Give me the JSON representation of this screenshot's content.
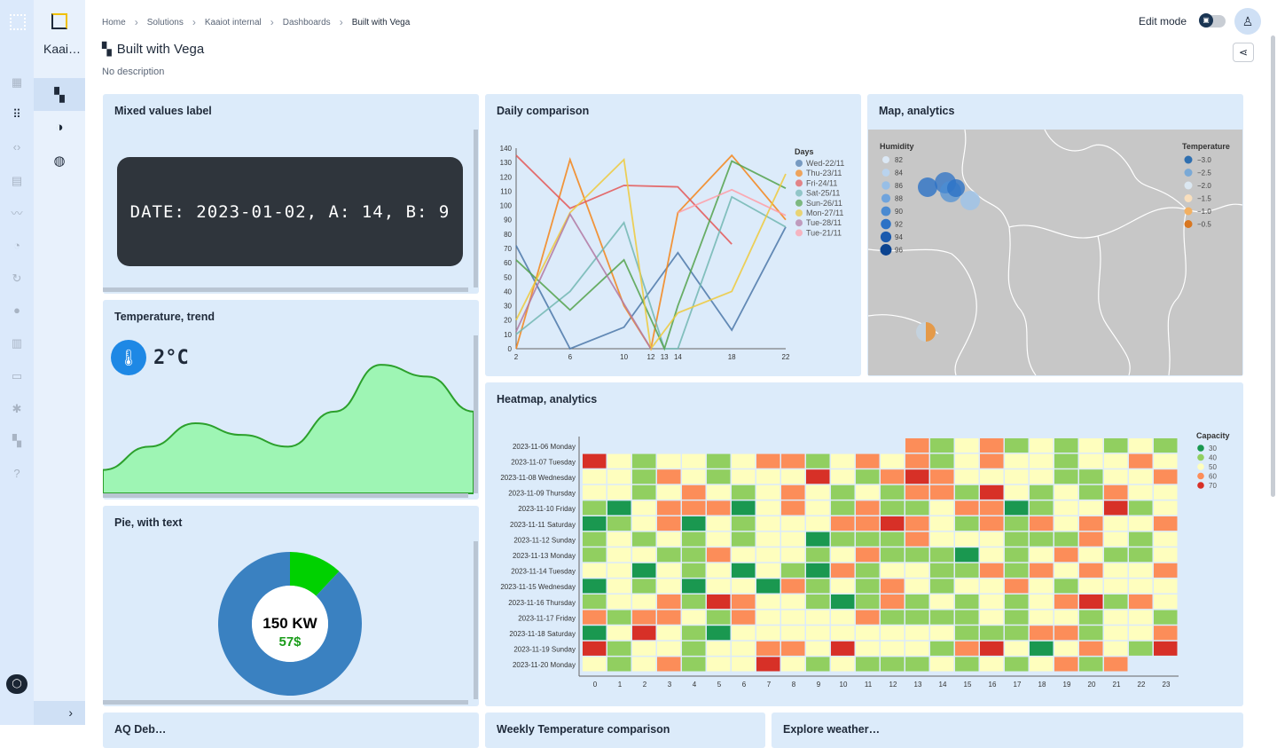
{
  "org": {
    "name": "Kaai…"
  },
  "breadcrumb": [
    "Home",
    "Solutions",
    "Kaaiot internal",
    "Dashboards",
    "Built with Vega"
  ],
  "page": {
    "title": "Built with Vega",
    "description": "No description",
    "edit_mode": "Edit mode"
  },
  "icons": {
    "rail": [
      "logo-icon",
      "dashboard-icon",
      "apps-icon",
      "code-icon",
      "device-icon",
      "analytics-icon",
      "bell-icon",
      "sync-icon",
      "user-icon",
      "building-icon",
      "folder-icon",
      "gear-icon",
      "grid-icon",
      "help-icon"
    ],
    "nav": [
      "dashboard-icon",
      "contrast-icon",
      "globe-icon"
    ]
  },
  "widgets": {
    "mixed": {
      "title": "Mixed values label",
      "text": "DATE: 2023-01-02, A: 14, B: 9"
    },
    "temp": {
      "title": "Temperature, trend",
      "value": "2°C"
    },
    "pie": {
      "title": "Pie, with text",
      "line1": "150 KW",
      "line2": "57$"
    },
    "daily": {
      "title": "Daily comparison"
    },
    "map": {
      "title": "Map, analytics"
    },
    "heatmap": {
      "title": "Heatmap, analytics"
    },
    "bottom": [
      "AQ Deb…",
      "Weekly Temperature comparison",
      "Explore weather…"
    ]
  },
  "chart_data": [
    {
      "type": "line",
      "title": "Daily comparison",
      "x": [
        2,
        6,
        10,
        12,
        13,
        14,
        18,
        22
      ],
      "ylim": [
        0,
        140
      ],
      "legend_title": "Days",
      "series": [
        {
          "name": "Wed-22/11",
          "color": "#4c78a8",
          "points": [
            [
              2,
              72
            ],
            [
              6,
              0
            ],
            [
              10,
              15
            ],
            [
              14,
              67
            ],
            [
              18,
              13
            ],
            [
              22,
              85
            ]
          ]
        },
        {
          "name": "Thu-23/11",
          "color": "#f58518",
          "points": [
            [
              2,
              0
            ],
            [
              6,
              132
            ],
            [
              10,
              30
            ],
            [
              12,
              0
            ],
            [
              14,
              95
            ],
            [
              18,
              135
            ],
            [
              22,
              90
            ]
          ]
        },
        {
          "name": "Fri-24/11",
          "color": "#e45756",
          "points": [
            [
              2,
              135
            ],
            [
              6,
              98
            ],
            [
              10,
              114
            ],
            [
              14,
              113
            ],
            [
              18,
              73
            ]
          ]
        },
        {
          "name": "Sat-25/11",
          "color": "#72b7b2",
          "points": [
            [
              2,
              10
            ],
            [
              6,
              40
            ],
            [
              10,
              88
            ],
            [
              13,
              0
            ],
            [
              14,
              0
            ],
            [
              18,
              106
            ],
            [
              22,
              85
            ]
          ]
        },
        {
          "name": "Sun-26/11",
          "color": "#54a24b",
          "points": [
            [
              2,
              62
            ],
            [
              6,
              27
            ],
            [
              10,
              62
            ],
            [
              13,
              0
            ],
            [
              14,
              30
            ],
            [
              18,
              131
            ],
            [
              22,
              112
            ]
          ]
        },
        {
          "name": "Mon-27/11",
          "color": "#eeca3b",
          "points": [
            [
              2,
              20
            ],
            [
              6,
              95
            ],
            [
              10,
              132
            ],
            [
              12,
              0
            ],
            [
              14,
              25
            ],
            [
              18,
              40
            ],
            [
              22,
              122
            ]
          ]
        },
        {
          "name": "Tue-28/11",
          "color": "#b279a2",
          "points": [
            [
              2,
              12
            ],
            [
              6,
              94
            ],
            [
              12,
              0
            ]
          ]
        },
        {
          "name": "Tue-21/11",
          "color": "#ff9da6",
          "points": [
            [
              14,
              95
            ],
            [
              18,
              111
            ],
            [
              22,
              93
            ]
          ]
        }
      ]
    },
    {
      "type": "area",
      "title": "Temperature, trend",
      "values": [
        2,
        4,
        6,
        5,
        4,
        7,
        11,
        10,
        7
      ]
    },
    {
      "type": "pie",
      "title": "Pie, with text",
      "values": [
        88,
        12
      ],
      "colors": [
        "#3a81c1",
        "#00d100"
      ]
    },
    {
      "type": "heatmap",
      "title": "Heatmap, analytics",
      "x": [
        "0",
        "1",
        "2",
        "3",
        "4",
        "5",
        "6",
        "7",
        "8",
        "9",
        "10",
        "11",
        "12",
        "13",
        "14",
        "15",
        "16",
        "17",
        "18",
        "19",
        "20",
        "21",
        "22",
        "23"
      ],
      "y": [
        "2023-11-06 Monday",
        "2023-11-07 Tuesday",
        "2023-11-08 Wednesday",
        "2023-11-09 Thursday",
        "2023-11-10 Friday",
        "2023-11-11 Saturday",
        "2023-11-12 Sunday",
        "2023-11-13 Monday",
        "2023-11-14 Tuesday",
        "2023-11-15 Wednesday",
        "2023-11-16 Thursday",
        "2023-11-17 Friday",
        "2023-11-18 Saturday",
        "2023-11-19 Sunday",
        "2023-11-20 Monday"
      ],
      "legend_title": "Capacity",
      "legend": [
        30,
        40,
        50,
        60,
        70
      ],
      "colors": [
        "#1a9850",
        "#91cf60",
        "#fefebe",
        "#fc8d59",
        "#d73027"
      ],
      "values": [
        [
          null,
          null,
          null,
          null,
          null,
          null,
          null,
          null,
          null,
          null,
          null,
          null,
          null,
          60,
          45,
          55,
          60,
          45,
          50,
          45,
          50,
          45,
          50,
          45
        ],
        [
          70,
          55,
          45,
          52,
          50,
          45,
          55,
          62,
          65,
          45,
          50,
          65,
          50,
          65,
          45,
          50,
          65,
          50,
          52,
          40,
          50,
          52,
          62,
          50
        ],
        [
          55,
          52,
          45,
          60,
          55,
          45,
          50,
          55,
          52,
          70,
          55,
          45,
          65,
          70,
          60,
          50,
          50,
          55,
          52,
          45,
          45,
          52,
          55,
          62
        ],
        [
          55,
          52,
          45,
          50,
          60,
          52,
          45,
          50,
          62,
          50,
          40,
          50,
          45,
          58,
          62,
          45,
          70,
          52,
          45,
          50,
          45,
          62,
          52,
          50
        ],
        [
          40,
          35,
          52,
          60,
          65,
          60,
          35,
          55,
          65,
          52,
          40,
          60,
          40,
          45,
          52,
          65,
          65,
          30,
          40,
          52,
          50,
          70,
          40,
          50
        ],
        [
          30,
          40,
          52,
          60,
          35,
          52,
          45,
          55,
          50,
          52,
          60,
          65,
          70,
          60,
          55,
          45,
          65,
          45,
          60,
          52,
          60,
          52,
          50,
          65
        ],
        [
          45,
          55,
          45,
          50,
          45,
          55,
          45,
          52,
          50,
          35,
          40,
          45,
          45,
          65,
          50,
          55,
          55,
          45,
          40,
          45,
          60,
          52,
          45,
          52
        ],
        [
          40,
          50,
          52,
          45,
          45,
          65,
          52,
          55,
          52,
          40,
          52,
          60,
          45,
          40,
          45,
          30,
          52,
          45,
          52,
          60,
          50,
          45,
          45,
          55
        ],
        [
          55,
          52,
          35,
          52,
          45,
          52,
          35,
          50,
          45,
          35,
          60,
          45,
          50,
          52,
          45,
          45,
          60,
          45,
          60,
          52,
          60,
          52,
          52,
          60
        ],
        [
          35,
          55,
          45,
          52,
          35,
          52,
          55,
          30,
          60,
          40,
          52,
          45,
          65,
          50,
          45,
          52,
          50,
          65,
          50,
          45,
          52,
          52,
          55,
          50
        ],
        [
          45,
          50,
          52,
          60,
          45,
          70,
          60,
          52,
          50,
          45,
          30,
          45,
          60,
          45,
          50,
          45,
          50,
          45,
          52,
          60,
          70,
          45,
          60,
          52
        ],
        [
          60,
          45,
          60,
          65,
          52,
          45,
          60,
          50,
          52,
          50,
          50,
          60,
          45,
          45,
          40,
          45,
          52,
          45,
          52,
          52,
          45,
          52,
          52,
          40
        ],
        [
          35,
          52,
          70,
          52,
          45,
          35,
          52,
          50,
          55,
          52,
          52,
          50,
          52,
          50,
          55,
          40,
          45,
          40,
          65,
          60,
          45,
          50,
          52,
          62
        ],
        [
          70,
          45,
          52,
          55,
          45,
          52,
          55,
          60,
          65,
          52,
          70,
          52,
          52,
          50,
          45,
          65,
          70,
          55,
          35,
          55,
          65,
          52,
          45,
          70
        ],
        [
          50,
          45,
          52,
          62,
          45,
          55,
          52,
          70,
          52,
          40,
          50,
          40,
          40,
          45,
          52,
          40,
          50,
          45,
          52,
          62,
          40,
          62,
          null,
          null
        ]
      ]
    },
    {
      "type": "scatter",
      "title": "Map, analytics",
      "legend_humidity": {
        "title": "Humidity",
        "values": [
          82,
          84,
          86,
          88,
          90,
          92,
          94,
          96
        ]
      },
      "legend_temperature": {
        "title": "Temperature",
        "values": [
          "−3.0",
          "−2.5",
          "−2.0",
          "−1.5",
          "−1.0",
          "−0.5"
        ]
      }
    }
  ]
}
